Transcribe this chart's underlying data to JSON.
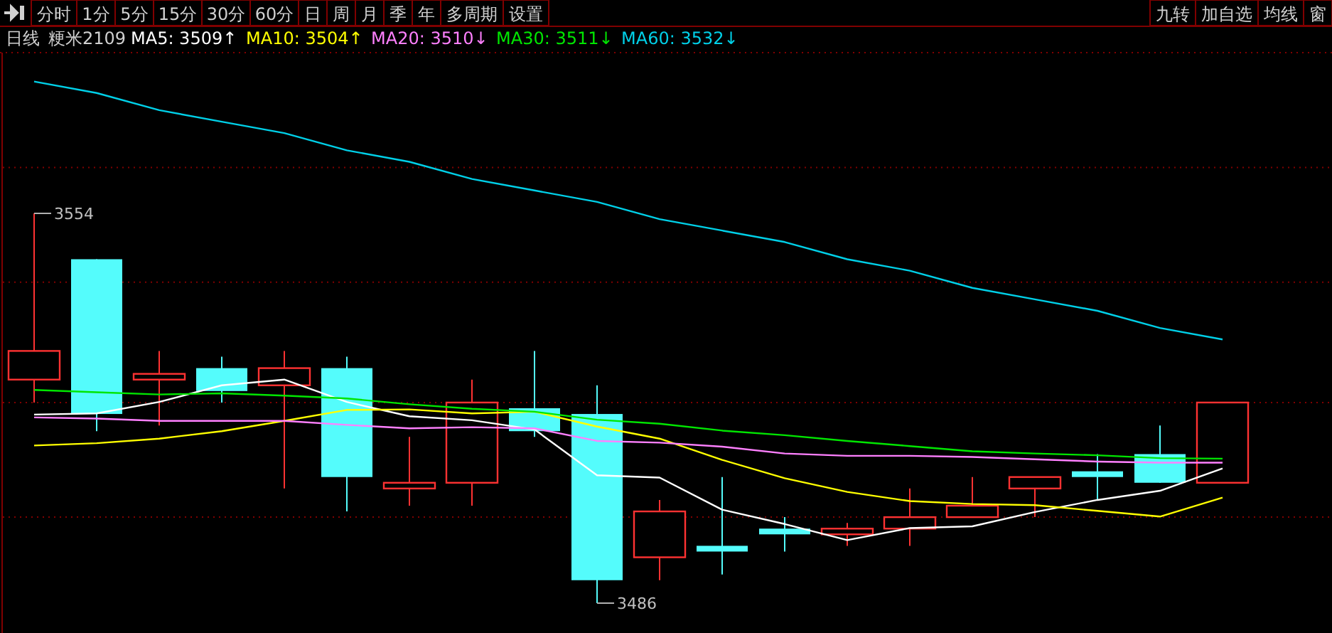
{
  "chart_data": {
    "type": "candlestick",
    "title": "日线",
    "subtitle": "粳米2109",
    "categories": [
      null,
      null,
      null,
      null,
      null,
      null,
      null,
      null,
      null,
      null,
      null,
      null,
      null,
      null,
      null,
      null,
      null,
      null,
      null,
      null
    ],
    "ohlc": [
      [
        3525,
        3554,
        3521,
        3530
      ],
      [
        3546,
        3546,
        3516,
        3519
      ],
      [
        3525,
        3530,
        3517,
        3526
      ],
      [
        3527,
        3529,
        3521,
        3523
      ],
      [
        3524,
        3530,
        3506,
        3527
      ],
      [
        3527,
        3529,
        3502,
        3508
      ],
      [
        3506,
        3515,
        3503,
        3507
      ],
      [
        3507,
        3525,
        3503,
        3521
      ],
      [
        3520,
        3530,
        3515,
        3516
      ],
      [
        3519,
        3524,
        3486,
        3490
      ],
      [
        3494,
        3504,
        3490,
        3502
      ],
      [
        3496,
        3508,
        3491,
        3495
      ],
      [
        3499,
        3501,
        3495,
        3498
      ],
      [
        3498,
        3500,
        3496,
        3499
      ],
      [
        3499,
        3506,
        3496,
        3501
      ],
      [
        3501,
        3508,
        3501,
        3503
      ],
      [
        3506,
        3508,
        3501,
        3508
      ],
      [
        3509,
        3512,
        3504,
        3508
      ],
      [
        3512,
        3517,
        3507,
        3507
      ],
      [
        3507,
        3521,
        3507,
        3521
      ]
    ],
    "series": [
      {
        "name": "MA5: 3509↑",
        "type": "line",
        "color": "#ffffff",
        "values": [
          3518.9,
          3519.1,
          3521.1,
          3524,
          3525,
          3521.1,
          3518.6,
          3517.9,
          3516.3,
          3508.3,
          3507.9,
          3502.3,
          3499.8,
          3497,
          3499.1,
          3499.4,
          3501.9,
          3504,
          3505.6,
          3509.5
        ]
      },
      {
        "name": "MA10: 3504↑",
        "type": "line",
        "color": "#ffff00",
        "values": [
          3513.5,
          3513.9,
          3514.7,
          3516,
          3517.8,
          3519.7,
          3519.8,
          3519.1,
          3519.4,
          3516.8,
          3514.7,
          3511,
          3507.8,
          3505.4,
          3503.8,
          3503.3,
          3503.1,
          3502.1,
          3501.1,
          3504.4
        ]
      },
      {
        "name": "MA20: 3510↓",
        "type": "line",
        "color": "#ff80ff",
        "values": [
          3518.4,
          3518.2,
          3517.8,
          3517.8,
          3517.8,
          3517.1,
          3516.5,
          3516.7,
          3516.5,
          3514.3,
          3514,
          3513.3,
          3512.1,
          3511.7,
          3511.7,
          3511.5,
          3511.1,
          3510.7,
          3510.5,
          3510.5
        ]
      },
      {
        "name": "MA30: 3511↓",
        "type": "line",
        "color": "#00e600",
        "values": [
          3523.2,
          3522.8,
          3522.4,
          3522.6,
          3522.2,
          3521.7,
          3520.7,
          3519.9,
          3519.4,
          3518,
          3517.3,
          3516.1,
          3515.3,
          3514.3,
          3513.4,
          3512.5,
          3512.1,
          3511.8,
          3511.3,
          3511.2
        ]
      },
      {
        "name": "MA60: 3532↓",
        "type": "line",
        "color": "#00d0e8",
        "values": [
          3577,
          3575,
          3572,
          3570,
          3568,
          3565,
          3563,
          3560,
          3558,
          3556,
          3553,
          3551,
          3549,
          3546,
          3544,
          3541,
          3539,
          3537,
          3534,
          3532
        ]
      }
    ],
    "yticks": [
      {
        "value": 3562,
        "label": null
      },
      {
        "value": 3542,
        "label": null
      },
      {
        "value": 3521,
        "label": null
      },
      {
        "value": 3501,
        "label": null
      }
    ],
    "grid": "y",
    "legend": "top left",
    "annotations": [
      "分时",
      "1分",
      "5分",
      "15分",
      "30分",
      "60分",
      "日",
      "周",
      "月",
      "季",
      "年",
      "多周期",
      "设置",
      "九转",
      "加自选",
      "均线",
      "窗",
      "3554",
      "3486"
    ]
  }
}
